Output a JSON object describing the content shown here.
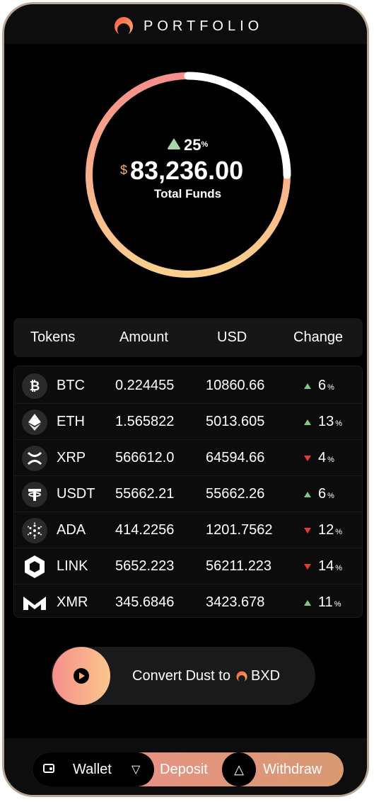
{
  "header": {
    "title": "PORTFOLIO",
    "logo_icon": "orange-moon-logo"
  },
  "summary": {
    "change_pct": "25",
    "change_symbol": "%",
    "currency": "$",
    "total": "83,236.00",
    "label": "Total Funds",
    "ring_fill_fraction": 0.25,
    "colors": {
      "gradient_start": "#f58f8b",
      "gradient_end": "#fbd08c",
      "highlight": "#ffffff"
    }
  },
  "table": {
    "headers": [
      "Tokens",
      "Amount",
      "USD",
      "Change"
    ],
    "rows": [
      {
        "symbol": "BTC",
        "icon": "bitcoin-icon",
        "amount": "0.224455",
        "usd": "10860.66",
        "direction": "up",
        "change": "6"
      },
      {
        "symbol": "ETH",
        "icon": "ethereum-icon",
        "amount": "1.565822",
        "usd": "5013.605",
        "direction": "up",
        "change": "13"
      },
      {
        "symbol": "XRP",
        "icon": "xrp-icon",
        "amount": "566612.0",
        "usd": "64594.66",
        "direction": "down",
        "change": "4"
      },
      {
        "symbol": "USDT",
        "icon": "tether-icon",
        "amount": "55662.21",
        "usd": "55662.26",
        "direction": "up",
        "change": "6"
      },
      {
        "symbol": "ADA",
        "icon": "cardano-icon",
        "amount": "414.2256",
        "usd": "1201.7562",
        "direction": "down",
        "change": "12"
      },
      {
        "symbol": "LINK",
        "icon": "chainlink-icon",
        "amount": "5652.223",
        "usd": "56211.223",
        "direction": "down",
        "change": "14"
      },
      {
        "symbol": "XMR",
        "icon": "monero-icon",
        "amount": "345.6846",
        "usd": "3423.678",
        "direction": "up",
        "change": "11"
      }
    ],
    "pct_symbol": "%"
  },
  "convert": {
    "label": "Convert Dust to",
    "token": "BXD",
    "icon": "play-icon"
  },
  "footer": {
    "wallet_label": "Wallet",
    "deposit_label": "Deposit",
    "withdraw_label": "Withdraw",
    "wallet_icon": "wallet-icon",
    "deposit_icon": "deposit-icon",
    "withdraw_icon": "withdraw-icon"
  }
}
